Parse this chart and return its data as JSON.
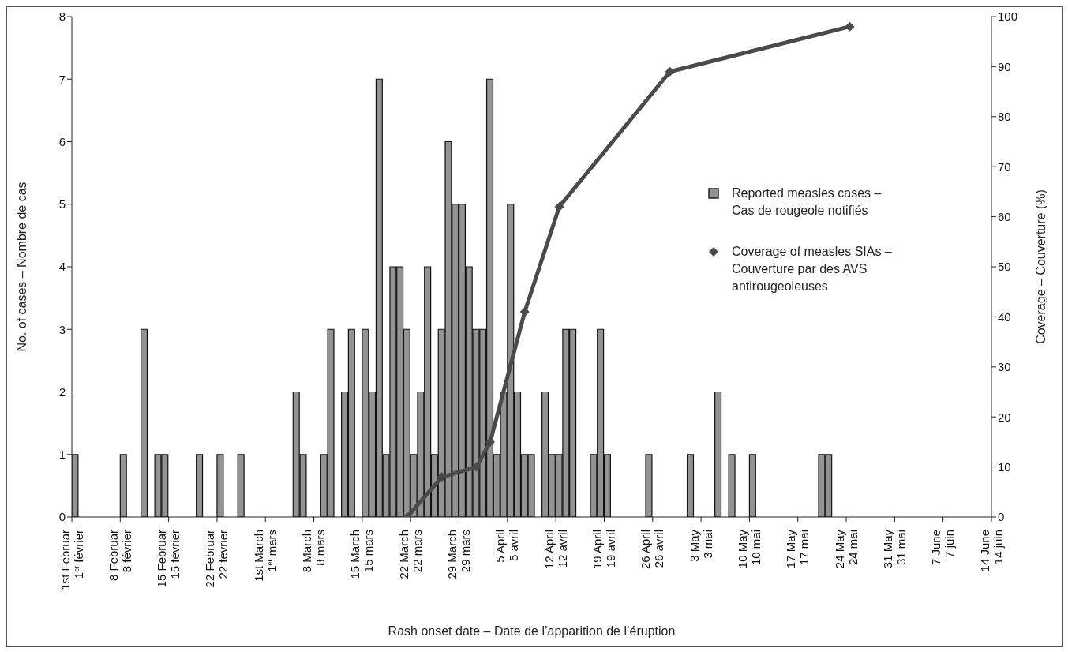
{
  "chart_data": {
    "type": "bar",
    "xlabel": "Rash onset date – Date de l’apparition de l’éruption",
    "ylabel": "No. of cases – Nombre de cas",
    "y2label": "Coverage – Couverture (%)",
    "xlim": [
      "--02-01",
      "--06-14"
    ],
    "xticks": [
      {
        "value": "--02-01",
        "label": "1st Februar\n1$^{er}$ février"
      },
      {
        "value": "--02-08",
        "label": "8 Februar\n8 février"
      },
      {
        "value": "--02-15",
        "label": "15 Februar\n15 février"
      },
      {
        "value": "--02-22",
        "label": "22 Februar\n22 février"
      },
      {
        "value": "--03-01",
        "label": "1st March\n1$^{er}$ mars"
      },
      {
        "value": "--03-08",
        "label": "8 March\n8 mars"
      },
      {
        "value": "--03-15",
        "label": "15 March\n15 mars"
      },
      {
        "value": "--03-22",
        "label": "22 March\n22 mars"
      },
      {
        "value": "--03-29",
        "label": "29 March\n29 mars"
      },
      {
        "value": "--04-05",
        "label": "5 April\n5 avril"
      },
      {
        "value": "--04-12",
        "label": "12 April\n12 avril"
      },
      {
        "value": "--04-19",
        "label": "19 April\n19 avril"
      },
      {
        "value": "--04-26",
        "label": "26 April\n26 avril"
      },
      {
        "value": "--05-03",
        "label": "3 May\n3 mai"
      },
      {
        "value": "--05-10",
        "label": "10 May\n10 mai"
      },
      {
        "value": "--05-17",
        "label": "17 May\n17 mai"
      },
      {
        "value": "--05-24",
        "label": "24 May\n24 mai"
      },
      {
        "value": "--05-31",
        "label": "31 May\n31 mai"
      },
      {
        "value": "--06-07",
        "label": "7 June\n7 juin"
      },
      {
        "value": "--06-14",
        "label": "14 June\n14 juin"
      }
    ],
    "ylim": [
      0,
      8
    ],
    "yticks": [
      0,
      1,
      2,
      3,
      4,
      5,
      6,
      7,
      8
    ],
    "y2lim": [
      0,
      100
    ],
    "y2ticks": [
      0,
      10,
      20,
      30,
      40,
      50,
      60,
      70,
      80,
      90,
      100
    ],
    "legend": "right",
    "series": [
      {
        "name": "Reported measles cases – Cas de rougeole notifiés",
        "color": "#939393",
        "x": [
          "--02-01",
          "--02-08",
          "--02-11",
          "--02-13",
          "--02-14",
          "--02-19",
          "--02-22",
          "--02-25",
          "--03-05",
          "--03-06",
          "--03-09",
          "--03-10",
          "--03-12",
          "--03-13",
          "--03-15",
          "--03-16",
          "--03-17",
          "--03-18",
          "--03-19",
          "--03-20",
          "--03-21",
          "--03-22",
          "--03-23",
          "--03-24",
          "--03-25",
          "--03-26",
          "--03-27",
          "--03-28",
          "--03-29",
          "--03-30",
          "--03-31",
          "--04-01",
          "--04-02",
          "--04-03",
          "--04-04",
          "--04-05",
          "--04-06",
          "--04-07",
          "--04-08",
          "--04-10",
          "--04-11",
          "--04-12",
          "--04-13",
          "--04-14",
          "--04-17",
          "--04-18",
          "--04-19",
          "--04-25",
          "--05-01",
          "--05-05",
          "--05-07",
          "--05-10",
          "--05-20",
          "--05-21"
        ],
        "values": [
          1,
          1,
          3,
          1,
          1,
          1,
          1,
          1,
          2,
          1,
          1,
          3,
          2,
          3,
          3,
          2,
          7,
          1,
          4,
          4,
          3,
          1,
          2,
          4,
          1,
          3,
          6,
          5,
          5,
          4,
          3,
          3,
          7,
          1,
          2,
          5,
          2,
          1,
          1,
          2,
          1,
          1,
          3,
          3,
          1,
          3,
          1,
          1,
          1,
          2,
          1,
          1,
          1,
          1
        ]
      },
      {
        "name": "Coverage of measles SIAs – Couverture par des AVS antirougeoleuses",
        "type": "line",
        "axis": "y2",
        "color": "#4a4a4a",
        "marker": "diamond",
        "x": [
          "--03-21",
          "--03-26",
          "--03-31",
          "--04-02",
          "--04-07",
          "--04-12",
          "--04-28",
          "--05-24"
        ],
        "values": [
          0,
          8,
          10,
          15,
          41,
          62,
          89,
          98
        ]
      }
    ]
  }
}
